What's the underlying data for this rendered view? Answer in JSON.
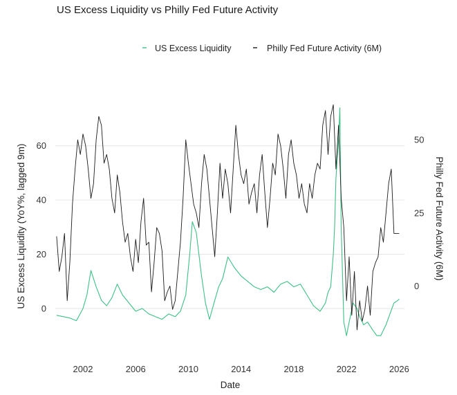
{
  "chart_data": {
    "type": "line",
    "title": "US Excess Liquidity vs Philly Fed Future Activity",
    "xlabel": "Date",
    "ylabel_left": "US Excess Liquidity (YoY%, lagged 9m)",
    "ylabel_right": "Philly Fed Future Activity (6M)",
    "legend_position": "top-right",
    "grid": "horizontal",
    "xlim": [
      1999.9,
      2026.4
    ],
    "ylim_left": [
      -12,
      76
    ],
    "ylim_right": [
      -18.8,
      62.8
    ],
    "x_ticks": [
      2002,
      2006,
      2010,
      2014,
      2018,
      2022,
      2026
    ],
    "x_tick_labels": [
      "2002",
      "2006",
      "2010",
      "2014",
      "2018",
      "2022",
      "2026"
    ],
    "y_ticks_left": [
      0,
      20,
      40,
      60
    ],
    "y_tick_labels_left": [
      "0",
      "20",
      "40",
      "60"
    ],
    "y_ticks_right": [
      0,
      25,
      50
    ],
    "y_tick_labels_right": [
      "0",
      "25",
      "50"
    ],
    "series": [
      {
        "name": "US Excess Liquidity",
        "axis": "left",
        "color": "#3dbf85",
        "x": [
          2000.0,
          2000.5,
          2001.0,
          2001.5,
          2002.0,
          2002.3,
          2002.6,
          2003.0,
          2003.4,
          2003.8,
          2004.2,
          2004.6,
          2005.0,
          2005.5,
          2006.0,
          2006.5,
          2007.0,
          2007.5,
          2008.0,
          2008.5,
          2009.0,
          2009.4,
          2009.8,
          2010.1,
          2010.3,
          2010.6,
          2011.0,
          2011.3,
          2011.6,
          2012.0,
          2012.3,
          2012.6,
          2013.0,
          2013.5,
          2014.0,
          2014.5,
          2015.0,
          2015.5,
          2016.0,
          2016.5,
          2017.0,
          2017.5,
          2018.0,
          2018.5,
          2019.0,
          2019.5,
          2020.0,
          2020.4,
          2020.6,
          2020.8,
          2021.0,
          2021.1,
          2021.2,
          2021.4,
          2021.5,
          2021.6,
          2021.8,
          2022.0,
          2022.2,
          2022.5,
          2022.8,
          2023.0,
          2023.3,
          2023.6,
          2024.0,
          2024.3,
          2024.6,
          2025.0,
          2025.3,
          2025.6,
          2025.9,
          2026.0
        ],
        "y": [
          -2.5,
          -3,
          -3.5,
          -4.5,
          0,
          5,
          14,
          8,
          3,
          1,
          4,
          9,
          5,
          2,
          -1,
          0,
          -2,
          -3,
          -4,
          -2,
          -3,
          -1,
          5,
          20,
          32,
          28,
          12,
          2,
          -4,
          3,
          8,
          11,
          19,
          15,
          12,
          10,
          8,
          7,
          8,
          6,
          9,
          10,
          8,
          9,
          5,
          1,
          -1,
          2,
          6,
          8,
          20,
          30,
          48,
          62,
          74,
          30,
          -5,
          -10,
          -5,
          2,
          0,
          -3,
          -6,
          -5,
          -8,
          -10,
          -10,
          -6,
          -2,
          2,
          3,
          3.5
        ]
      },
      {
        "name": "Philly Fed Future Activity (6M)",
        "axis": "right",
        "color": "#1a1a1a",
        "x": [
          2000.0,
          2000.2,
          2000.4,
          2000.6,
          2000.8,
          2001.0,
          2001.2,
          2001.4,
          2001.6,
          2001.8,
          2002.0,
          2002.2,
          2002.4,
          2002.6,
          2002.8,
          2003.0,
          2003.2,
          2003.4,
          2003.6,
          2003.8,
          2004.0,
          2004.2,
          2004.4,
          2004.6,
          2004.8,
          2005.0,
          2005.2,
          2005.4,
          2005.6,
          2005.8,
          2006.0,
          2006.2,
          2006.4,
          2006.6,
          2006.8,
          2007.0,
          2007.2,
          2007.4,
          2007.6,
          2007.8,
          2008.0,
          2008.2,
          2008.4,
          2008.6,
          2008.8,
          2009.0,
          2009.2,
          2009.4,
          2009.6,
          2009.8,
          2010.0,
          2010.2,
          2010.4,
          2010.6,
          2010.8,
          2011.0,
          2011.2,
          2011.4,
          2011.6,
          2011.8,
          2012.0,
          2012.2,
          2012.4,
          2012.6,
          2012.8,
          2013.0,
          2013.2,
          2013.4,
          2013.6,
          2013.8,
          2014.0,
          2014.2,
          2014.4,
          2014.6,
          2014.8,
          2015.0,
          2015.2,
          2015.4,
          2015.6,
          2015.8,
          2016.0,
          2016.2,
          2016.4,
          2016.6,
          2016.8,
          2017.0,
          2017.2,
          2017.4,
          2017.6,
          2017.8,
          2018.0,
          2018.2,
          2018.4,
          2018.6,
          2018.8,
          2019.0,
          2019.2,
          2019.4,
          2019.6,
          2019.8,
          2020.0,
          2020.2,
          2020.4,
          2020.6,
          2020.8,
          2021.0,
          2021.2,
          2021.4,
          2021.6,
          2021.8,
          2022.0,
          2022.2,
          2022.4,
          2022.6,
          2022.8,
          2023.0,
          2023.2,
          2023.4,
          2023.6,
          2023.8,
          2024.0,
          2024.2,
          2024.4,
          2024.6,
          2024.8,
          2025.0,
          2025.2,
          2025.4,
          2025.6,
          2025.8,
          2026.0
        ],
        "y": [
          17,
          5,
          10,
          18,
          -5,
          8,
          28,
          40,
          50,
          45,
          52,
          48,
          40,
          30,
          35,
          50,
          58,
          55,
          42,
          45,
          40,
          30,
          25,
          38,
          32,
          22,
          15,
          18,
          10,
          5,
          16,
          8,
          22,
          30,
          14,
          15,
          -2,
          8,
          20,
          18,
          12,
          -5,
          -2,
          0,
          -8,
          -5,
          5,
          15,
          30,
          50,
          42,
          35,
          28,
          25,
          20,
          35,
          45,
          40,
          30,
          20,
          10,
          25,
          42,
          30,
          40,
          35,
          25,
          40,
          55,
          45,
          38,
          35,
          40,
          28,
          32,
          35,
          25,
          38,
          45,
          32,
          20,
          30,
          42,
          38,
          52,
          48,
          40,
          30,
          45,
          50,
          42,
          38,
          30,
          35,
          28,
          25,
          35,
          30,
          38,
          42,
          40,
          55,
          60,
          45,
          58,
          62,
          40,
          55,
          30,
          20,
          -5,
          10,
          -10,
          5,
          -15,
          -5,
          -12,
          -8,
          0,
          -10,
          5,
          8,
          10,
          20,
          15,
          25,
          35,
          40,
          18,
          18,
          18
        ]
      }
    ]
  }
}
